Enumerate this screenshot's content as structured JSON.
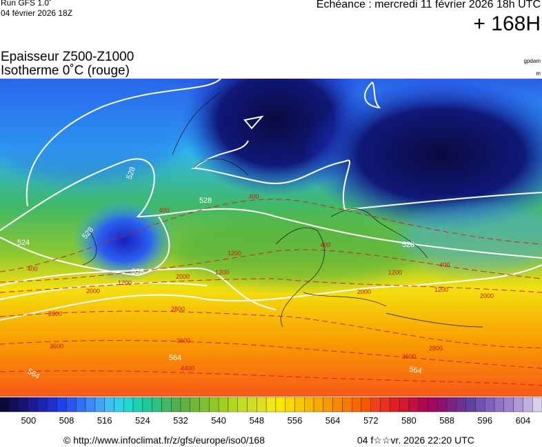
{
  "header": {
    "run": "Run GFS 1.0˚",
    "run_date": "04 février 2026 18Z",
    "echeance": "Echéance : mercredi 11 février 2026 18h UTC",
    "lead": "+ 168H"
  },
  "title": {
    "line1": "Epaisseur Z500-Z1000",
    "line2": "Isotherme 0˚C (rouge)"
  },
  "units": {
    "thickness": "gpdam",
    "isotherm": "m"
  },
  "thickness_labels": [
    528,
    528,
    524,
    528,
    528,
    528,
    564,
    564,
    564
  ],
  "isotherm_labels": [
    400,
    400,
    400,
    400,
    400,
    1200,
    1200,
    1200,
    1200,
    1200,
    2000,
    2000,
    2000,
    2000,
    2800,
    2800,
    2800,
    3600,
    3600,
    3600,
    4400
  ],
  "colorbar": {
    "labels": [
      500,
      508,
      516,
      524,
      532,
      540,
      548,
      556,
      564,
      572,
      580,
      588,
      596,
      604
    ],
    "colors": [
      "#0a0a3a",
      "#10105a",
      "#141478",
      "#1a1a96",
      "#1e22b4",
      "#2030d0",
      "#2040e8",
      "#2a55f0",
      "#3070f5",
      "#3a8af8",
      "#40a4f8",
      "#40bff5",
      "#30d0e8",
      "#20d8d0",
      "#20d0b0",
      "#20c898",
      "#30c080",
      "#40b868",
      "#50b050",
      "#60b040",
      "#70b838",
      "#80c030",
      "#90c828",
      "#a0d020",
      "#b0d820",
      "#c0e020",
      "#d0e020",
      "#e0e020",
      "#f0e818",
      "#f8e800",
      "#f8d800",
      "#f8c800",
      "#f8b800",
      "#f8a800",
      "#f89800",
      "#f88800",
      "#f87800",
      "#f86800",
      "#f85800",
      "#f04020",
      "#e83020",
      "#e02020",
      "#d01830",
      "#c01040",
      "#b00850",
      "#a00860",
      "#901070",
      "#802080",
      "#703090",
      "#6040a0",
      "#7050b0",
      "#8060c0",
      "#9070c8",
      "#a080d0",
      "#b098d8",
      "#c0b0e0",
      "#d8d0ec"
    ]
  },
  "footer": {
    "source": "© http://www.infoclimat.fr/z/gfs/europe/iso0/168",
    "generated": "04 f☆☆vr. 2026 22:20 UTC"
  }
}
